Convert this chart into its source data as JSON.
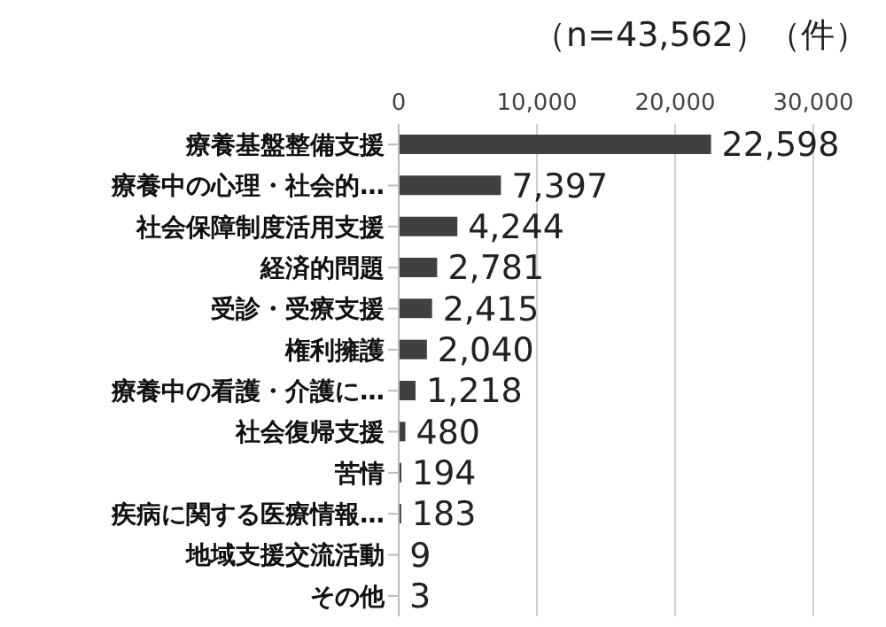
{
  "chart_data": {
    "type": "bar",
    "orientation": "horizontal",
    "title": "（n=43,562）（件）",
    "categories": [
      "療養基盤整備支援",
      "療養中の心理・社会的…",
      "社会保障制度活用支援",
      "経済的問題",
      "受診・受療支援",
      "権利擁護",
      "療養中の看護・介護に…",
      "社会復帰支援",
      "苦情",
      "疾病に関する医療情報…",
      "地域支援交流活動",
      "その他"
    ],
    "values": [
      22598,
      7397,
      4244,
      2781,
      2415,
      2040,
      1218,
      480,
      194,
      183,
      9,
      3
    ],
    "value_labels": [
      "22,598",
      "7,397",
      "4,244",
      "2,781",
      "2,415",
      "2,040",
      "1,218",
      "480",
      "194",
      "183",
      "9",
      "3"
    ],
    "color": "#404040",
    "xlim": [
      0,
      30000
    ],
    "xticks": [
      {
        "value": 0,
        "label": "0"
      },
      {
        "value": 10000,
        "label": "10,000"
      },
      {
        "value": 20000,
        "label": "20,000"
      },
      {
        "value": 30000,
        "label": "30,000"
      }
    ],
    "grid": "x",
    "legend": false
  }
}
